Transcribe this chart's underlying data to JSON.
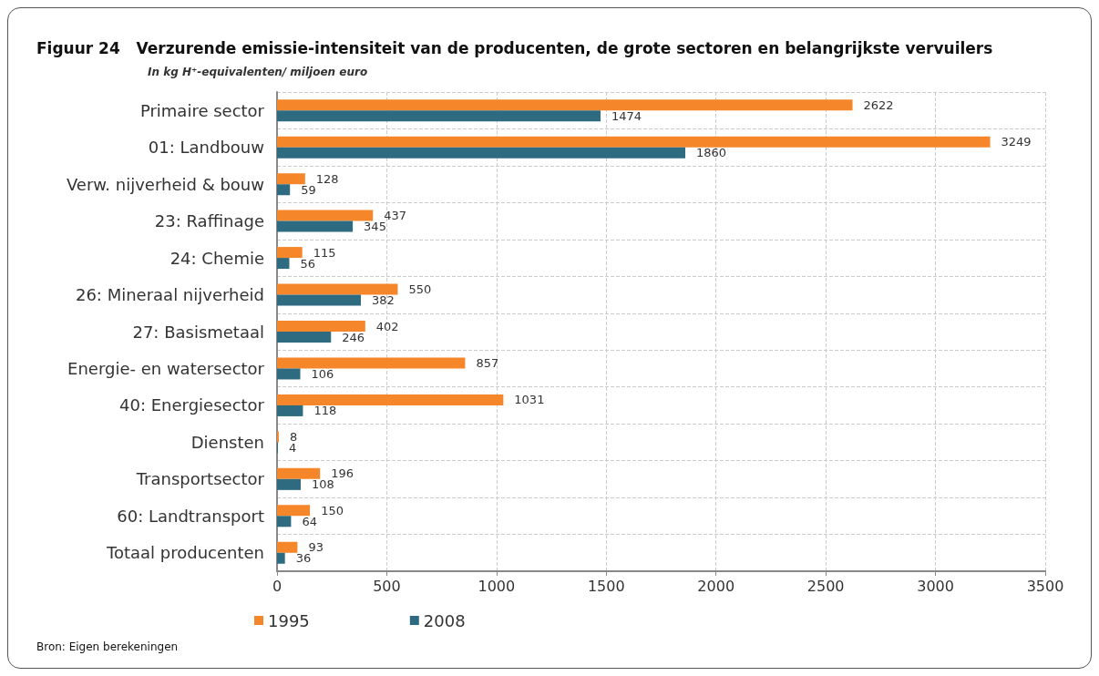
{
  "chart_data": {
    "type": "bar",
    "orientation": "horizontal",
    "title": "Figuur 24   Verzurende emissie-intensiteit van de producenten, de grote sectoren en belangrijkste vervuilers",
    "subtitle": "In kg H⁺-equivalenten/ miljoen euro",
    "categories": [
      "Primaire sector",
      "01: Landbouw",
      "Verw. nijverheid & bouw",
      "23: Raffinage",
      "24: Chemie",
      "26: Mineraal nijverheid",
      "27: Basismetaal",
      "Energie- en watersector",
      "40: Energiesector",
      "Diensten",
      "Transportsector",
      "60: Landtransport",
      "Totaal producenten"
    ],
    "series": [
      {
        "name": "1995",
        "color": "#f5862a",
        "values": [
          2622,
          3249,
          128,
          437,
          115,
          550,
          402,
          857,
          1031,
          8,
          196,
          150,
          93
        ]
      },
      {
        "name": "2008",
        "color": "#2e6b80",
        "values": [
          1474,
          1860,
          59,
          345,
          56,
          382,
          246,
          106,
          118,
          4,
          108,
          64,
          36
        ]
      }
    ],
    "xlim": [
      0,
      3500
    ],
    "xticks": [
      0,
      500,
      1000,
      1500,
      2000,
      2500,
      3000,
      3500
    ],
    "grid": true,
    "legend": "bottom left",
    "data_labels": true,
    "annotations": [
      "Bron: Eigen berekeningen"
    ]
  }
}
